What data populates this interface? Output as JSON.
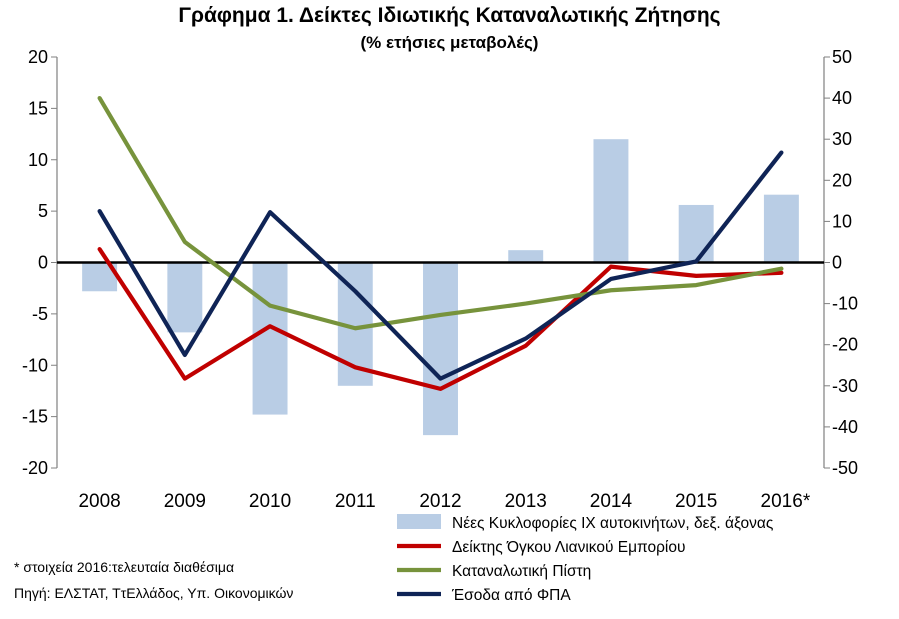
{
  "chart_data": {
    "type": "bar+line",
    "title": "Γράφημα 1. Δείκτες Ιδιωτικής Καταναλωτικής Ζήτησης",
    "subtitle": "(% ετήσιες μεταβολές)",
    "categories": [
      "2008",
      "2009",
      "2010",
      "2011",
      "2012",
      "2013",
      "2014",
      "2015",
      "2016*"
    ],
    "y_left": {
      "ylim": [
        -20,
        20
      ],
      "ticks": [
        "20",
        "15",
        "10",
        "5",
        "0",
        "-5",
        "-10",
        "-15",
        "-20"
      ]
    },
    "y_right": {
      "ylim": [
        -50,
        50
      ],
      "ticks": [
        "50",
        "40",
        "30",
        "20",
        "10",
        "0",
        "-10",
        "-20",
        "-30",
        "-40",
        "-50"
      ]
    },
    "bars": {
      "name": "Νέες Κυκλοφορίες ΙΧ αυτοκινήτων, δεξ. άξονας",
      "axis": "right",
      "color": "#b9cde5",
      "values": [
        -7,
        -17,
        -37,
        -30,
        -42,
        3,
        30,
        14,
        16.5
      ]
    },
    "series": [
      {
        "name": "Δείκτης Όγκου Λιανικού Εμπορίου",
        "axis": "left",
        "color": "#c00000",
        "values": [
          1.3,
          -11.3,
          -6.2,
          -10.2,
          -12.3,
          -8.1,
          -0.4,
          -1.3,
          -1.0
        ]
      },
      {
        "name": "Καταναλωτική Πίστη",
        "axis": "left",
        "color": "#77933c",
        "values": [
          16.0,
          2.0,
          -4.2,
          -6.4,
          -5.1,
          -4.0,
          -2.7,
          -2.2,
          -0.6
        ]
      },
      {
        "name": "Έσοδα από ΦΠΑ",
        "axis": "left",
        "color": "#0f2456",
        "values": [
          5.0,
          -9.0,
          4.9,
          -2.8,
          -11.3,
          -7.4,
          -1.6,
          0.1,
          10.7
        ]
      }
    ],
    "legend": "bottom-right"
  },
  "notes": {
    "footnote": "* στοιχεία 2016:τελευταία διαθέσιμα",
    "source": "Πηγή: ΕΛΣΤΑΤ, ΤτΕλλάδος, Υπ. Οικονομικών"
  }
}
